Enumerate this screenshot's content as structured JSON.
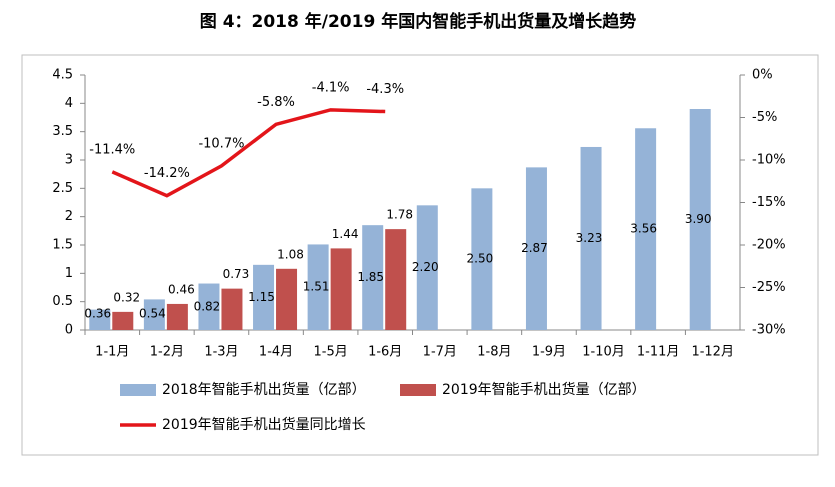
{
  "chart_data": {
    "type": "bar_line",
    "title": "图 4：2018 年/2019 年国内智能手机出货量及增长趋势",
    "categories": [
      "1-1月",
      "1-2月",
      "1-3月",
      "1-4月",
      "1-5月",
      "1-6月",
      "1-7月",
      "1-8月",
      "1-9月",
      "1-10月",
      "1-11月",
      "1-12月"
    ],
    "series": [
      {
        "name": "2018年智能手机出货量（亿部）",
        "color": "#95b3d7",
        "type": "bar",
        "values": [
          0.36,
          0.54,
          0.82,
          1.15,
          1.51,
          1.85,
          2.2,
          2.5,
          2.87,
          3.23,
          3.56,
          3.9
        ],
        "value_labels": [
          "0.36",
          "0.54",
          "0.82",
          "1.15",
          "1.51",
          "1.85",
          "2.20",
          "2.50",
          "2.87",
          "3.23",
          "3.56",
          "3.90"
        ]
      },
      {
        "name": "2019年智能手机出货量（亿部）",
        "color": "#c0504d",
        "type": "bar",
        "values": [
          0.32,
          0.46,
          0.73,
          1.08,
          1.44,
          1.78,
          null,
          null,
          null,
          null,
          null,
          null
        ],
        "value_labels": [
          "0.32",
          "0.46",
          "0.73",
          "1.08",
          "1.44",
          "1.78",
          null,
          null,
          null,
          null,
          null,
          null
        ]
      },
      {
        "name": "2019年智能手机出货量同比增长",
        "color": "#e3151a",
        "type": "line",
        "axis": "y2",
        "values": [
          -11.4,
          -14.2,
          -10.7,
          -5.8,
          -4.1,
          -4.3,
          null,
          null,
          null,
          null,
          null,
          null
        ],
        "value_labels": [
          "-11.4%",
          "-14.2%",
          "-10.7%",
          "-5.8%",
          "-4.1%",
          "-4.3%",
          null,
          null,
          null,
          null,
          null,
          null
        ]
      }
    ],
    "ylim": [
      0,
      4.5
    ],
    "yticks": [
      0,
      0.5,
      1,
      1.5,
      2,
      2.5,
      3,
      3.5,
      4,
      4.5
    ],
    "y2lim": [
      -30,
      0
    ],
    "y2ticks": [
      {
        "value": 0,
        "label": "0%"
      },
      {
        "value": -5,
        "label": "-5%"
      },
      {
        "value": -10,
        "label": "-10%"
      },
      {
        "value": -15,
        "label": "-15%"
      },
      {
        "value": -20,
        "label": "-20%"
      },
      {
        "value": -25,
        "label": "-25%"
      },
      {
        "value": -30,
        "label": "-30%"
      }
    ],
    "legend": "bottom"
  }
}
